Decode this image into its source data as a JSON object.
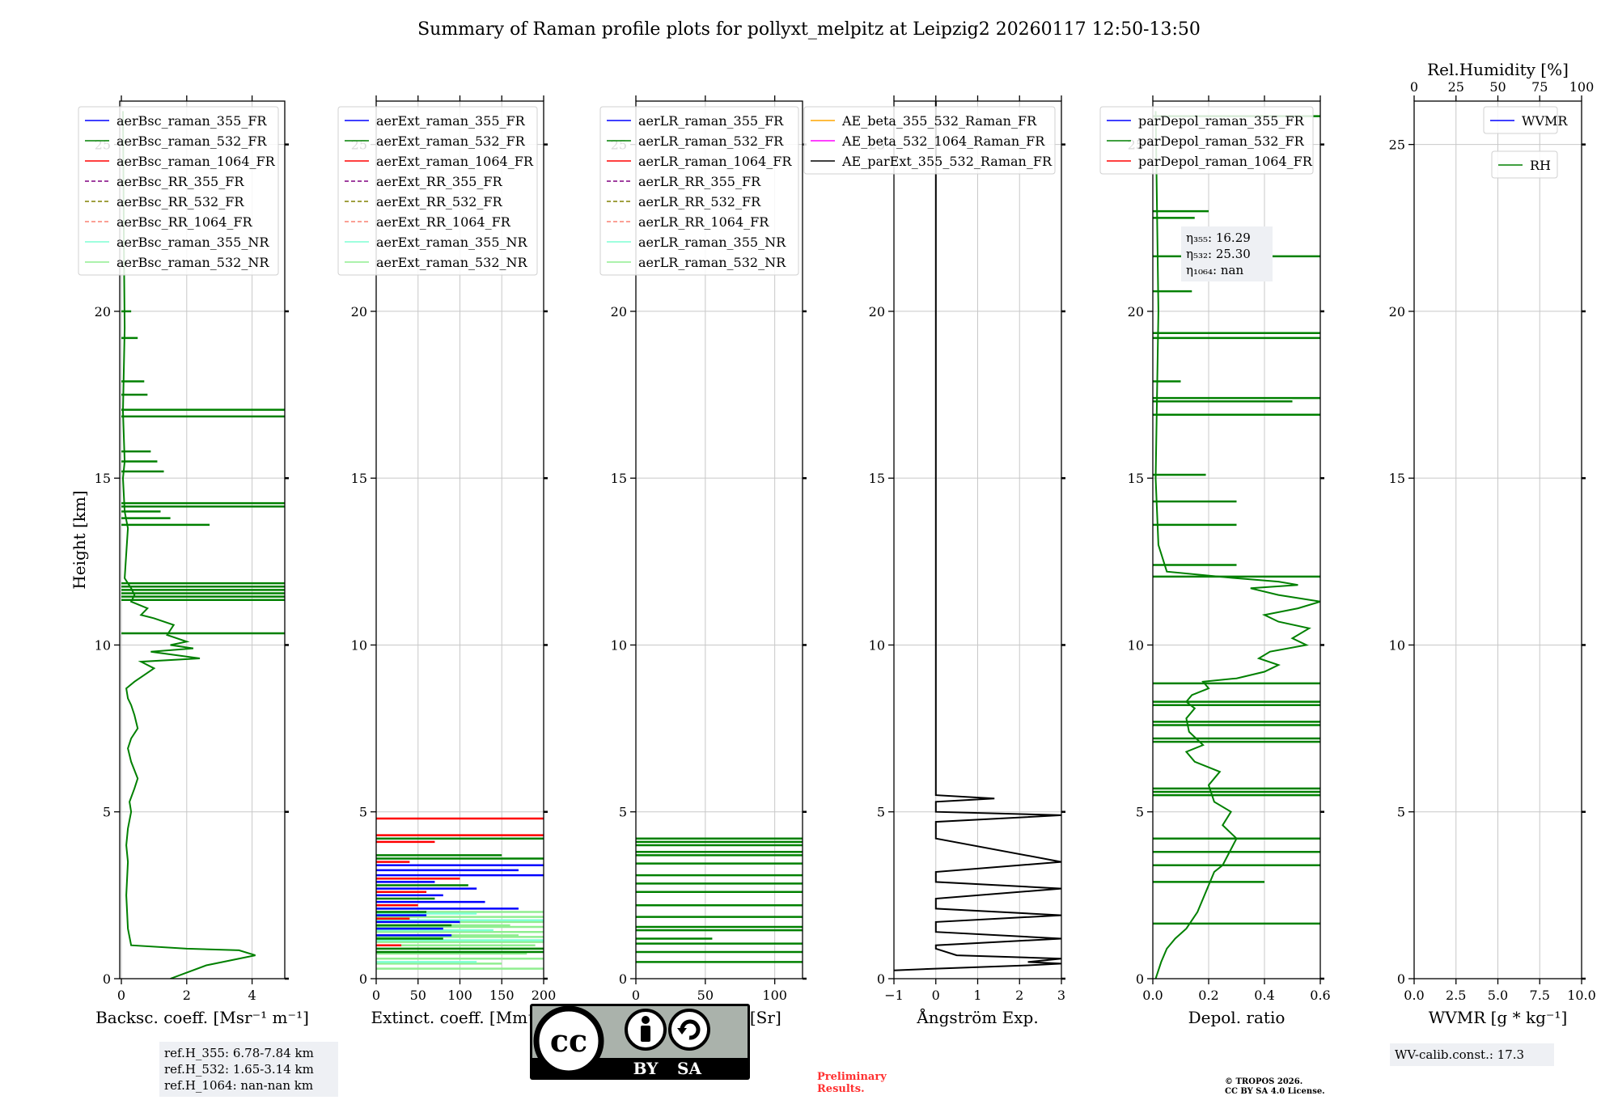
{
  "title": "Summary of Raman profile plots for pollyxt_melpitz at Leipzig2 20260117 12:50-13:50",
  "colors": {
    "blue": "#0000ff",
    "green": "#008000",
    "red": "#ff0000",
    "purple": "#800080",
    "olive": "#808000",
    "salmon": "#fa8072",
    "aqua": "#7fffd4",
    "lime": "#90ee90",
    "orange": "#ffa500",
    "magenta": "#ff00ff",
    "black": "#000000"
  },
  "chart_data": [
    {
      "id": "backscatter",
      "type": "line",
      "xlabel": "Backsc. coeff. [Msr⁻¹ m⁻¹]",
      "ylabel": "Height [km]",
      "xlim": [
        -0.05,
        5
      ],
      "ylim": [
        0,
        26.3
      ],
      "xticks": [
        0,
        2,
        4
      ],
      "xtick_labels": [
        "0",
        "2",
        "4"
      ],
      "yticks": [
        0,
        5,
        10,
        15,
        20,
        25
      ],
      "ytick_labels": [
        "0",
        "5",
        "10",
        "15",
        "20",
        "25"
      ],
      "legend": [
        {
          "label": "aerBsc_raman_355_FR",
          "color": "blue",
          "dash": false
        },
        {
          "label": "aerBsc_raman_532_FR",
          "color": "green",
          "dash": false
        },
        {
          "label": "aerBsc_raman_1064_FR",
          "color": "red",
          "dash": false
        },
        {
          "label": "aerBsc_RR_355_FR",
          "color": "purple",
          "dash": true
        },
        {
          "label": "aerBsc_RR_532_FR",
          "color": "olive",
          "dash": true
        },
        {
          "label": "aerBsc_RR_1064_FR",
          "color": "salmon",
          "dash": true
        },
        {
          "label": "aerBsc_raman_355_NR",
          "color": "aqua",
          "dash": false
        },
        {
          "label": "aerBsc_raman_532_NR",
          "color": "lime",
          "dash": false
        }
      ],
      "series": [
        {
          "name": "aerBsc_raman_532_FR",
          "color": "green",
          "x": [
            1.5,
            2.6,
            4.1,
            3.6,
            2.0,
            0.3,
            0.2,
            0.15,
            0.2,
            0.15,
            0.2,
            0.3,
            0.25,
            0.4,
            0.5,
            0.3,
            0.2,
            0.3,
            0.5,
            0.4,
            0.3,
            0.2,
            0.15,
            0.4,
            0.7,
            1.0,
            0.6,
            2.4,
            0.9,
            2.2,
            1.5,
            2.0,
            1.4,
            1.6,
            1.0,
            0.6,
            0.8,
            0.3,
            0.4,
            0.3,
            0.1,
            0.2,
            0.1,
            0.05,
            0.1,
            0.05,
            0.1,
            0.08,
            0.05
          ],
          "y": [
            0.0,
            0.4,
            0.7,
            0.85,
            0.9,
            1.0,
            1.5,
            2.5,
            3.5,
            4.0,
            4.5,
            5.0,
            5.3,
            5.7,
            6.0,
            6.5,
            6.9,
            7.2,
            7.5,
            7.9,
            8.2,
            8.4,
            8.7,
            8.9,
            9.1,
            9.3,
            9.5,
            9.6,
            9.8,
            9.9,
            10.0,
            10.1,
            10.3,
            10.6,
            10.8,
            10.9,
            11.1,
            11.3,
            11.5,
            11.7,
            12.0,
            13.5,
            14.0,
            15.0,
            15.5,
            17.0,
            19.5,
            21.5,
            26.0
          ]
        },
        {
          "name": "aerBsc_raman_532_FR spikes",
          "color": "green",
          "style": "spikes",
          "y": [
            10.35,
            11.35,
            11.45,
            11.55,
            11.65,
            11.75,
            11.85,
            14.15,
            14.25,
            16.85,
            17.05
          ],
          "x": [
            5,
            5,
            5,
            5,
            5,
            5,
            5,
            5,
            5,
            5,
            5
          ]
        },
        {
          "name": "aerBsc_raman_532_FR small spikes",
          "color": "green",
          "style": "spikes",
          "y": [
            13.6,
            13.8,
            14.0,
            15.2,
            15.5,
            15.8,
            17.5,
            17.9,
            19.2,
            20.0
          ],
          "x": [
            2.7,
            1.5,
            1.2,
            1.3,
            1.1,
            0.9,
            0.8,
            0.7,
            0.5,
            0.3
          ]
        }
      ],
      "annotation_lines": [
        "ref.H_355: 6.78-7.84 km",
        "ref.H_532: 1.65-3.14 km",
        "ref.H_1064: nan-nan km"
      ]
    },
    {
      "id": "extinction",
      "type": "line",
      "xlabel": "Extinct. coeff. [Mm⁻¹]",
      "xlim": [
        0,
        200
      ],
      "ylim": [
        0,
        26.3
      ],
      "xticks": [
        0,
        50,
        100,
        150,
        200
      ],
      "xtick_labels": [
        "0",
        "50",
        "100",
        "150",
        "200"
      ],
      "yticks": [
        0,
        5,
        10,
        15,
        20,
        25
      ],
      "ytick_labels": [
        "0",
        "5",
        "10",
        "15",
        "20",
        "25"
      ],
      "legend": [
        {
          "label": "aerExt_raman_355_FR",
          "color": "blue",
          "dash": false
        },
        {
          "label": "aerExt_raman_532_FR",
          "color": "green",
          "dash": false
        },
        {
          "label": "aerExt_raman_1064_FR",
          "color": "red",
          "dash": false
        },
        {
          "label": "aerExt_RR_355_FR",
          "color": "purple",
          "dash": true
        },
        {
          "label": "aerExt_RR_532_FR",
          "color": "olive",
          "dash": true
        },
        {
          "label": "aerExt_RR_1064_FR",
          "color": "salmon",
          "dash": true
        },
        {
          "label": "aerExt_raman_355_NR",
          "color": "aqua",
          "dash": false
        },
        {
          "label": "aerExt_raman_532_NR",
          "color": "lime",
          "dash": false
        }
      ],
      "series": [
        {
          "name": "aerExt_raman_532_NR",
          "color": "lime",
          "style": "spikes",
          "y": [
            0.3,
            0.6,
            0.9,
            1.1,
            1.25,
            1.4,
            1.55,
            1.7,
            1.85,
            2.0,
            0.45,
            0.75,
            1.0,
            1.3,
            1.6
          ],
          "x": [
            200,
            200,
            200,
            200,
            200,
            200,
            200,
            200,
            200,
            200,
            150,
            180,
            190,
            170,
            160
          ]
        },
        {
          "name": "aerExt_raman_355_NR",
          "color": "aqua",
          "style": "spikes",
          "y": [
            0.5,
            0.8,
            1.15,
            1.45,
            1.75,
            1.95,
            2.1
          ],
          "x": [
            120,
            160,
            200,
            140,
            200,
            120,
            100
          ]
        },
        {
          "name": "aerExt_raman_355_FR",
          "color": "blue",
          "style": "spikes",
          "y": [
            1.3,
            1.5,
            1.7,
            1.9,
            2.1,
            2.3,
            2.5,
            2.7,
            2.9,
            3.1,
            3.25,
            3.4
          ],
          "x": [
            90,
            80,
            100,
            60,
            170,
            130,
            80,
            120,
            70,
            200,
            170,
            200
          ]
        },
        {
          "name": "aerExt_raman_532_FR",
          "color": "green",
          "style": "spikes",
          "y": [
            0.8,
            0.9,
            1.2,
            1.6,
            2.0,
            2.4,
            2.8,
            3.6,
            3.7,
            4.2
          ],
          "x": [
            200,
            200,
            80,
            90,
            60,
            70,
            110,
            200,
            150,
            200
          ]
        },
        {
          "name": "aerExt_raman_1064_FR",
          "color": "red",
          "style": "spikes",
          "y": [
            1.0,
            1.8,
            2.2,
            2.6,
            3.0,
            3.5,
            4.1,
            4.3,
            4.8
          ],
          "x": [
            30,
            40,
            50,
            60,
            100,
            40,
            70,
            200,
            200
          ]
        }
      ]
    },
    {
      "id": "lidar_ratio",
      "type": "line",
      "xlabel": "Lidar ratio [Sr]",
      "xlim": [
        0,
        120
      ],
      "ylim": [
        0,
        26.3
      ],
      "xticks": [
        0,
        50,
        100
      ],
      "xtick_labels": [
        "0",
        "50",
        "100"
      ],
      "yticks": [
        0,
        5,
        10,
        15,
        20,
        25
      ],
      "ytick_labels": [
        "0",
        "5",
        "10",
        "15",
        "20",
        "25"
      ],
      "legend": [
        {
          "label": "aerLR_raman_355_FR",
          "color": "blue",
          "dash": false
        },
        {
          "label": "aerLR_raman_532_FR",
          "color": "green",
          "dash": false
        },
        {
          "label": "aerLR_raman_1064_FR",
          "color": "red",
          "dash": false
        },
        {
          "label": "aerLR_RR_355_FR",
          "color": "purple",
          "dash": true
        },
        {
          "label": "aerLR_RR_532_FR",
          "color": "olive",
          "dash": true
        },
        {
          "label": "aerLR_RR_1064_FR",
          "color": "salmon",
          "dash": true
        },
        {
          "label": "aerLR_raman_355_NR",
          "color": "aqua",
          "dash": false
        },
        {
          "label": "aerLR_raman_532_NR",
          "color": "lime",
          "dash": false
        }
      ],
      "series": [
        {
          "name": "aerLR_raman_532_FR",
          "color": "green",
          "style": "spikes",
          "y": [
            0.5,
            0.8,
            1.05,
            1.2,
            1.45,
            1.55,
            1.85,
            2.2,
            2.6,
            2.85,
            3.1,
            3.45,
            3.7,
            3.8,
            4.0,
            4.1,
            4.2
          ],
          "x": [
            120,
            120,
            120,
            55,
            120,
            120,
            120,
            120,
            120,
            120,
            120,
            120,
            120,
            120,
            120,
            120,
            120
          ]
        }
      ]
    },
    {
      "id": "angstrom",
      "type": "line",
      "xlabel": "Ångström Exp.",
      "xlim": [
        -1,
        3
      ],
      "ylim": [
        0,
        26.3
      ],
      "xticks": [
        -1,
        0,
        1,
        2,
        3
      ],
      "xtick_labels": [
        "−1",
        "0",
        "1",
        "2",
        "3"
      ],
      "yticks": [
        0,
        5,
        10,
        15,
        20,
        25
      ],
      "ytick_labels": [
        "0",
        "5",
        "10",
        "15",
        "20",
        "25"
      ],
      "legend": [
        {
          "label": "AE_beta_355_532_Raman_FR",
          "color": "orange",
          "dash": false
        },
        {
          "label": "AE_beta_532_1064_Raman_FR",
          "color": "magenta",
          "dash": false
        },
        {
          "label": "AE_parExt_355_532_Raman_FR",
          "color": "black",
          "dash": false
        }
      ],
      "series": [
        {
          "name": "AE_parExt_355_532_Raman_FR",
          "color": "black",
          "x": [
            0,
            0,
            1.4,
            0,
            0,
            3.0,
            0,
            0,
            3.0,
            0,
            0,
            3.0,
            0,
            0,
            3.0,
            0,
            0,
            3.0,
            0,
            0,
            0.5,
            3.0,
            2.2,
            3.0,
            2.2,
            0,
            -1
          ],
          "y": [
            26.3,
            5.5,
            5.4,
            5.3,
            5.0,
            4.9,
            4.7,
            4.2,
            3.5,
            3.2,
            2.9,
            2.7,
            2.4,
            2.1,
            1.9,
            1.7,
            1.4,
            1.2,
            1.0,
            0.9,
            0.7,
            0.6,
            0.5,
            0.45,
            0.4,
            0.3,
            0.25
          ]
        }
      ]
    },
    {
      "id": "depol",
      "type": "line",
      "xlabel": "Depol. ratio",
      "xlim": [
        0,
        0.6
      ],
      "ylim": [
        0,
        26.3
      ],
      "xticks": [
        0,
        0.2,
        0.4,
        0.6
      ],
      "xtick_labels": [
        "0.0",
        "0.2",
        "0.4",
        "0.6"
      ],
      "yticks": [
        0,
        5,
        10,
        15,
        20,
        25
      ],
      "ytick_labels": [
        "0",
        "5",
        "10",
        "15",
        "20",
        "25"
      ],
      "legend": [
        {
          "label": "parDepol_raman_355_FR",
          "color": "blue",
          "dash": false
        },
        {
          "label": "parDepol_raman_532_FR",
          "color": "green",
          "dash": false
        },
        {
          "label": "parDepol_raman_1064_FR",
          "color": "red",
          "dash": false
        }
      ],
      "annotation_lines": [
        "η₃₅₅: 16.29",
        "η₅₃₂: 25.30",
        "η₁₀₆₄: nan"
      ],
      "series": [
        {
          "name": "parDepol_raman_532_FR",
          "color": "green",
          "x": [
            0.01,
            0.03,
            0.05,
            0.08,
            0.12,
            0.16,
            0.2,
            0.22,
            0.25,
            0.3,
            0.25,
            0.28,
            0.22,
            0.2,
            0.24,
            0.15,
            0.12,
            0.18,
            0.13,
            0.12,
            0.15,
            0.12,
            0.14,
            0.2,
            0.18,
            0.3,
            0.4,
            0.45,
            0.38,
            0.42,
            0.55,
            0.5,
            0.56,
            0.45,
            0.4,
            0.52,
            0.6,
            0.45,
            0.35,
            0.52,
            0.45,
            0.3,
            0.05,
            0.02,
            0.01,
            0.02,
            0.01
          ],
          "y": [
            0.0,
            0.5,
            0.9,
            1.2,
            1.5,
            2.0,
            2.8,
            3.2,
            3.4,
            4.2,
            4.6,
            5.0,
            5.3,
            5.8,
            6.2,
            6.5,
            6.8,
            7.0,
            7.4,
            7.8,
            8.1,
            8.3,
            8.5,
            8.7,
            8.9,
            9.0,
            9.2,
            9.4,
            9.6,
            9.8,
            10.0,
            10.2,
            10.5,
            10.7,
            10.9,
            11.1,
            11.3,
            11.5,
            11.7,
            11.8,
            11.9,
            12.0,
            12.2,
            13.0,
            15.0,
            20.0,
            26.0
          ]
        },
        {
          "name": "parDepol_raman_532_FR spikes",
          "color": "green",
          "style": "spikes",
          "y": [
            1.65,
            3.4,
            3.8,
            4.2,
            5.5,
            5.6,
            5.7,
            7.1,
            7.2,
            7.6,
            7.7,
            8.2,
            8.3,
            8.85,
            12.05,
            13.6,
            16.9,
            17.3,
            17.4,
            19.2,
            19.35,
            21.65,
            25.85
          ],
          "x": [
            0.6,
            0.6,
            0.6,
            0.6,
            0.6,
            0.6,
            0.6,
            0.6,
            0.6,
            0.6,
            0.6,
            0.6,
            0.6,
            0.6,
            0.6,
            0.3,
            0.6,
            0.5,
            0.6,
            0.6,
            0.6,
            0.6,
            0.6
          ]
        },
        {
          "name": "parDepol_raman_532_FR small spikes",
          "color": "green",
          "style": "spikes",
          "y": [
            2.9,
            12.4,
            14.3,
            15.1,
            17.9,
            20.6,
            22.8,
            23.0
          ],
          "x": [
            0.4,
            0.3,
            0.3,
            0.19,
            0.1,
            0.14,
            0.15,
            0.2
          ]
        }
      ]
    },
    {
      "id": "wvmr",
      "type": "line",
      "xlabel": "WVMR [g * kg⁻¹]",
      "top_xlabel": "Rel.Humidity [%]",
      "xlim": [
        0,
        10
      ],
      "ylim": [
        0,
        26.3
      ],
      "xticks": [
        0,
        2.5,
        5,
        7.5,
        10
      ],
      "xtick_labels": [
        "0.0",
        "2.5",
        "5.0",
        "7.5",
        "10.0"
      ],
      "top_xticks": [
        0,
        25,
        50,
        75,
        100
      ],
      "top_xtick_labels": [
        "0",
        "25",
        "50",
        "75",
        "100"
      ],
      "yticks": [
        0,
        5,
        10,
        15,
        20,
        25
      ],
      "ytick_labels": [
        "0",
        "5",
        "10",
        "15",
        "20",
        "25"
      ],
      "legend": [
        {
          "label": "WVMR",
          "color": "blue",
          "dash": false
        }
      ],
      "legend2": [
        {
          "label": "RH",
          "color": "green",
          "dash": false
        }
      ],
      "annotation_lines": [
        "WV-calib.const.: 17.3"
      ],
      "series": []
    }
  ],
  "footer": {
    "license_badge": {
      "cc": "cc",
      "by": "BY",
      "sa": "SA"
    },
    "preliminary_line1": "Preliminary",
    "preliminary_line2": "Results.",
    "copyright_line1": "© TROPOS 2026.",
    "copyright_line2": "CC BY SA 4.0 License."
  }
}
